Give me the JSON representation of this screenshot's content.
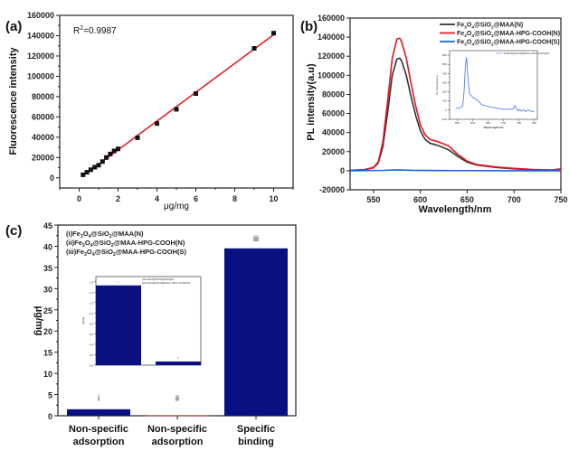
{
  "chart_data": [
    {
      "panel": "(a)",
      "type": "scatter",
      "title": "",
      "xlabel": "μg/mg",
      "ylabel": "Fluorescence intensity",
      "xlim": [
        -1,
        11
      ],
      "ylim": [
        -10000,
        160000
      ],
      "xticks": [
        0,
        2,
        4,
        6,
        8,
        10
      ],
      "yticks": [
        0,
        20000,
        40000,
        60000,
        80000,
        100000,
        120000,
        140000,
        160000
      ],
      "annotation": "R²=0.9987",
      "annotation_parts": {
        "base": "R",
        "sup": "2",
        "rest": "=0.9987"
      },
      "points": {
        "x": [
          0.2,
          0.4,
          0.6,
          0.8,
          1.0,
          1.2,
          1.4,
          1.6,
          1.8,
          2.0,
          3.0,
          4.0,
          5.0,
          6.0,
          9.0,
          10.0
        ],
        "y": [
          3000,
          5500,
          8000,
          10500,
          12500,
          16000,
          20000,
          23500,
          26500,
          28500,
          39500,
          53500,
          67500,
          83000,
          127500,
          142500
        ]
      },
      "fit_line": {
        "x": [
          0.2,
          10.0
        ],
        "y": [
          2000,
          141000
        ]
      },
      "colors": {
        "points": "#111111",
        "fit": "#e8141b"
      },
      "grid": false
    },
    {
      "panel": "(b)",
      "type": "line",
      "xlabel": "Wavelength/nm",
      "ylabel": "PL intensity(a.u)",
      "xlim": [
        525,
        750
      ],
      "ylim": [
        -20000,
        160000
      ],
      "xticks": [
        550,
        600,
        650,
        700,
        750
      ],
      "yticks": [
        -20000,
        0,
        20000,
        40000,
        60000,
        80000,
        100000,
        120000,
        140000,
        160000
      ],
      "legend_position": "top-right",
      "series": [
        {
          "name": "Fe3O4@SiO2@MAA(N)",
          "color": "#333333",
          "x": [
            525,
            540,
            550,
            555,
            560,
            565,
            570,
            575,
            578,
            580,
            585,
            590,
            595,
            600,
            605,
            610,
            620,
            630,
            640,
            650,
            660,
            680,
            700,
            720,
            740,
            750
          ],
          "y": [
            500,
            1000,
            3000,
            8000,
            25000,
            60000,
            100000,
            117000,
            118000,
            115000,
            100000,
            78000,
            58000,
            42000,
            33000,
            29000,
            26000,
            22000,
            15000,
            9000,
            6000,
            3500,
            2000,
            1000,
            500,
            500
          ]
        },
        {
          "name": "Fe3O4@SiO2@MAA-HPG-COOH(N)",
          "color": "#e8141b",
          "x": [
            525,
            540,
            550,
            555,
            560,
            565,
            570,
            575,
            578,
            580,
            585,
            590,
            595,
            600,
            605,
            610,
            620,
            630,
            640,
            650,
            660,
            680,
            700,
            720,
            740,
            750
          ],
          "y": [
            500,
            1000,
            3500,
            9000,
            30000,
            72000,
            118000,
            138000,
            139000,
            135000,
            118000,
            92000,
            68000,
            48000,
            38000,
            33000,
            30000,
            26000,
            17000,
            10000,
            6500,
            4000,
            2500,
            1200,
            800,
            2000
          ]
        },
        {
          "name": "Fe3O4@SiO2@MAA-HPG-COOH(S)",
          "color": "#1a62e0",
          "x": [
            525,
            560,
            575,
            590,
            620,
            700,
            750
          ],
          "y": [
            0,
            400,
            900,
            500,
            200,
            0,
            0
          ]
        }
      ],
      "legend": {
        "items": [
          {
            "parts": [
              "Fe",
              "3",
              "O",
              "4",
              "@SiO",
              "2",
              "@MAA(N)"
            ]
          },
          {
            "parts": [
              "Fe",
              "3",
              "O",
              "4",
              "@SiO",
              "2",
              "@MAA-HPG-COOH(N)"
            ]
          },
          {
            "parts": [
              "Fe",
              "3",
              "O",
              "4",
              "@SiO",
              "2",
              "@MAA-HPG-COOH(S)"
            ]
          }
        ]
      },
      "inset": {
        "type": "line",
        "xlabel": "Wavelength/nm",
        "ylabel": "PL intensity(a.u)",
        "xlim": [
          525,
          810
        ],
        "ylim": [
          -100,
          650
        ],
        "xticks": [
          550,
          600,
          650,
          700,
          750,
          800
        ],
        "yticks": [
          -100,
          0,
          100,
          200,
          300,
          400,
          500,
          600
        ],
        "legend": "Fe3O4@SiO2@MAA-HPG-COOH(S)",
        "color": "#5b7ff0",
        "x": [
          545,
          555,
          562,
          568,
          572,
          576,
          580,
          585,
          590,
          600,
          615,
          630,
          650,
          680,
          700,
          720,
          732,
          737,
          742,
          748,
          752,
          758,
          765,
          772,
          780,
          790,
          800
        ],
        "y": [
          20,
          20,
          30,
          50,
          200,
          480,
          580,
          330,
          180,
          140,
          110,
          60,
          40,
          20,
          10,
          10,
          15,
          50,
          15,
          -10,
          10,
          -10,
          5,
          -15,
          0,
          -10,
          -15
        ]
      }
    },
    {
      "panel": "(c)",
      "type": "bar",
      "xlabel": "",
      "ylabel": "μg/mg",
      "ylim": [
        0,
        45
      ],
      "yticks": [
        0,
        5,
        10,
        15,
        20,
        25,
        30,
        35,
        40,
        45
      ],
      "categories": [
        "Non-specific adsorption",
        "Non-specific adsorption",
        "Specific binding"
      ],
      "category_lines": [
        [
          "Non-specific",
          "adsorption"
        ],
        [
          "Non-specific",
          "adsorption"
        ],
        [
          "Specific",
          "binding"
        ]
      ],
      "bar_labels": [
        "i",
        "ii",
        "iii"
      ],
      "values": [
        1.53,
        0.07,
        39.5
      ],
      "bar_color": "#0a0f82",
      "legend": {
        "items": [
          {
            "parts": [
              "(i)Fe",
              "3",
              "O",
              "4",
              "@SiO",
              "2",
              "@MAA(N)"
            ]
          },
          {
            "parts": [
              "(ii)Fe",
              "3",
              "O",
              "4",
              "@SiO",
              "2",
              "@MAA-HPG-COOH(N)"
            ]
          },
          {
            "parts": [
              "(iii)Fe",
              "3",
              "O",
              "4",
              "@SiO",
              "2",
              "@MAA-HPG-COOH(S)"
            ]
          }
        ]
      },
      "inset": {
        "type": "bar",
        "ylabel": "μg/mg",
        "ylim": [
          0,
          1.7
        ],
        "yticks": [
          0.0,
          0.2,
          0.4,
          0.6,
          0.8,
          1.0,
          1.2,
          1.4,
          1.6
        ],
        "bar_labels": [
          "i",
          "ii"
        ],
        "values": [
          1.53,
          0.07
        ],
        "legend": [
          "(i)Fe3O4@SiO2@MAA(N)",
          "(ii)Fe3O4@SiO2@MAA-HPG-COOH(N)"
        ]
      }
    }
  ]
}
